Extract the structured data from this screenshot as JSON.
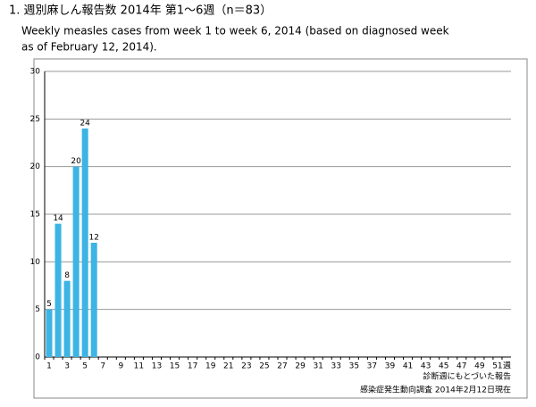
{
  "chart_data": {
    "type": "bar",
    "title": "1. 週別麻しん報告数  2014年 第1～6週（n＝83）",
    "subtitle": [
      "Weekly measles cases from week 1 to week 6, 2014 (based on diagnosed week",
      "as of  February 12, 2014)."
    ],
    "categories": [
      1,
      null,
      3,
      null,
      5,
      null,
      7,
      null,
      9,
      null,
      11,
      null,
      13,
      null,
      15,
      null,
      17,
      null,
      19,
      null,
      21,
      null,
      23,
      null,
      25,
      null,
      27,
      null,
      29,
      null,
      31,
      null,
      33,
      null,
      35,
      null,
      37,
      null,
      39,
      null,
      41,
      null,
      43,
      null,
      45,
      null,
      47,
      null,
      49,
      null,
      51,
      null
    ],
    "x_unit": "週",
    "values": [
      5,
      14,
      8,
      20,
      24,
      12,
      null,
      null,
      null,
      null,
      null,
      null,
      null,
      null,
      null,
      null,
      null,
      null,
      null,
      null,
      null,
      null,
      null,
      null,
      null,
      null,
      null,
      null,
      null,
      null,
      null,
      null,
      null,
      null,
      null,
      null,
      null,
      null,
      null,
      null,
      null,
      null,
      null,
      null,
      null,
      null,
      null,
      null,
      null,
      null,
      null,
      null
    ],
    "color": "#3cb4e4",
    "ylim": [
      0,
      30
    ],
    "yticks": [
      0,
      5,
      10,
      15,
      20,
      25,
      30
    ],
    "grid": true,
    "annotations": [
      "診断週にもとづいた報告",
      "感染症発生動向調査 2014年2月12日現在"
    ]
  }
}
